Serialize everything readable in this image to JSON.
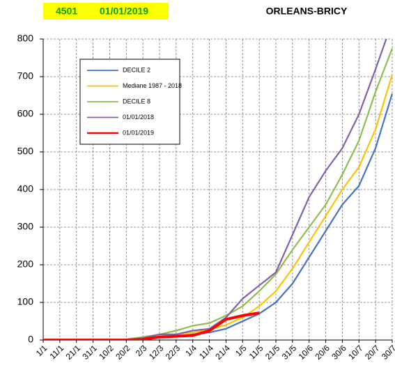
{
  "chart_data": {
    "type": "line",
    "title": "ORLEANS-BRICY",
    "station": "4501",
    "date": "01/01/2019",
    "categories": [
      "1/1",
      "11/1",
      "21/1",
      "31/1",
      "10/2",
      "20/2",
      "2/3",
      "12/3",
      "22/3",
      "1/4",
      "11/4",
      "21/4",
      "1/5",
      "11/5",
      "21/5",
      "31/5",
      "10/6",
      "20/6",
      "30/6",
      "10/7",
      "20/7",
      "30/7"
    ],
    "series": [
      {
        "name": "DECILE 2",
        "color": "#4472c4",
        "values": [
          0,
          0,
          0,
          0,
          0,
          0,
          3,
          8,
          10,
          15,
          20,
          30,
          50,
          70,
          100,
          150,
          220,
          290,
          360,
          410,
          510,
          655
        ]
      },
      {
        "name": "Mediane 1987 - 2018",
        "color": "#ffc000",
        "values": [
          0,
          0,
          0,
          0,
          0,
          1,
          5,
          10,
          15,
          20,
          28,
          40,
          60,
          90,
          130,
          190,
          260,
          330,
          400,
          460,
          560,
          705
        ]
      },
      {
        "name": "DECILE 8",
        "color": "#8fbc4f",
        "values": [
          0,
          0,
          0,
          0,
          0,
          2,
          8,
          15,
          25,
          38,
          45,
          65,
          90,
          130,
          175,
          240,
          300,
          360,
          440,
          530,
          660,
          775
        ]
      },
      {
        "name": "01/01/2018",
        "color": "#8061a8",
        "values": [
          0,
          0,
          0,
          0,
          0,
          1,
          5,
          15,
          15,
          25,
          30,
          60,
          110,
          145,
          180,
          280,
          380,
          450,
          510,
          600,
          720,
          845
        ]
      },
      {
        "name": "01/01/2019",
        "color": "#ff0000",
        "values": [
          0,
          0,
          0,
          0,
          0,
          0,
          2,
          8,
          10,
          12,
          25,
          55,
          65,
          72,
          null,
          null,
          null,
          null,
          null,
          null,
          null,
          null
        ]
      }
    ],
    "ylim": [
      0,
      800
    ],
    "yticks": [
      0,
      100,
      200,
      300,
      400,
      500,
      600,
      700,
      800
    ],
    "grid": true
  }
}
